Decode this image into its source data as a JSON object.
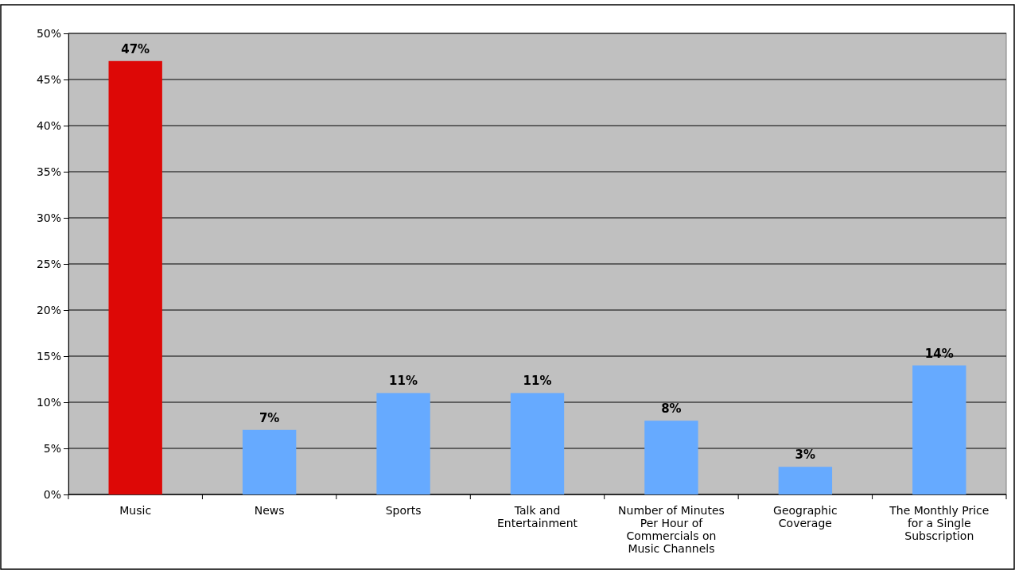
{
  "chart_data": {
    "type": "bar",
    "categories": [
      "Music",
      "News",
      "Sports",
      "Talk and Entertainment",
      "Number of Minutes Per Hour of Commercials on Music Channels",
      "Geographic Coverage",
      "The Monthly Price for a Single Subscription"
    ],
    "values": [
      47,
      7,
      11,
      11,
      8,
      3,
      14
    ],
    "colors": [
      "#dd0806",
      "#66aaff",
      "#66aaff",
      "#66aaff",
      "#66aaff",
      "#66aaff",
      "#66aaff"
    ],
    "value_labels": [
      "47%",
      "7%",
      "11%",
      "11%",
      "8%",
      "3%",
      "14%"
    ],
    "ylim": [
      0,
      50
    ],
    "yticks": [
      {
        "value": 0,
        "label": "0%"
      },
      {
        "value": 5,
        "label": "5%"
      },
      {
        "value": 10,
        "label": "10%"
      },
      {
        "value": 15,
        "label": "15%"
      },
      {
        "value": 20,
        "label": "20%"
      },
      {
        "value": 25,
        "label": "25%"
      },
      {
        "value": 30,
        "label": "30%"
      },
      {
        "value": 35,
        "label": "35%"
      },
      {
        "value": 40,
        "label": "40%"
      },
      {
        "value": 45,
        "label": "45%"
      },
      {
        "value": 50,
        "label": "50%"
      }
    ],
    "grid": "y"
  }
}
